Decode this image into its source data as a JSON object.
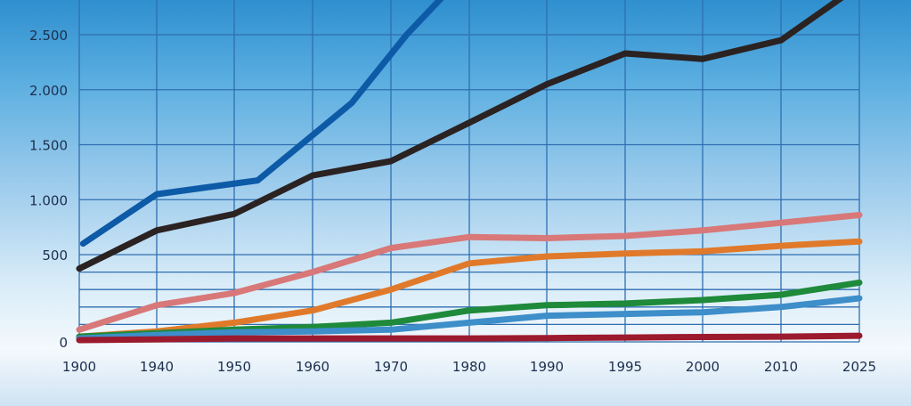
{
  "chart_data": {
    "type": "line",
    "title": "",
    "xlabel": "",
    "ylabel": "",
    "grid": true,
    "legend": "none",
    "x": [
      1900,
      1940,
      1950,
      1960,
      1970,
      1980,
      1990,
      1995,
      2000,
      2010,
      2025
    ],
    "x_tick_labels": [
      "1900",
      "1940",
      "1950",
      "1960",
      "1970",
      "1980",
      "1990",
      "1995",
      "2000",
      "2010",
      "2025"
    ],
    "y_ticks": [
      0,
      500,
      1000,
      1500,
      2000,
      2500
    ],
    "y_tick_labels": [
      "0",
      "500",
      "1.000",
      "1.500",
      "2.000",
      "2.500"
    ],
    "ylim": [
      0,
      2950
    ],
    "series": [
      {
        "color": "#0d5aa7",
        "values": [
          580,
          1060,
          1200,
          1500,
          1880,
          2300,
          null,
          null,
          null,
          null,
          null
        ],
        "extra_points": [
          [
            1902,
            600
          ],
          [
            1940,
            1050
          ],
          [
            1953,
            1175
          ],
          [
            1965,
            1880
          ],
          [
            1972,
            2500
          ],
          [
            1978,
            2950
          ]
        ]
      },
      {
        "color": "#2b2222",
        "values": [
          420,
          720,
          870,
          1220,
          1350,
          1700,
          2050,
          2330,
          2280,
          2450,
          2950
        ]
      },
      {
        "color": "#d87878",
        "values": [
          70,
          210,
          280,
          400,
          560,
          660,
          650,
          670,
          720,
          790,
          860
        ]
      },
      {
        "color": "#e07a2a",
        "values": [
          30,
          60,
          110,
          180,
          300,
          450,
          490,
          510,
          530,
          580,
          620
        ]
      },
      {
        "color": "#1e8a3a",
        "values": [
          30,
          50,
          70,
          85,
          110,
          180,
          210,
          220,
          240,
          270,
          340
        ]
      },
      {
        "color": "#3d8ec9",
        "values": [
          20,
          40,
          55,
          60,
          70,
          110,
          150,
          160,
          170,
          200,
          250
        ]
      },
      {
        "color": "#9c1a2e",
        "values": [
          10,
          15,
          20,
          20,
          20,
          20,
          22,
          25,
          28,
          30,
          35
        ]
      }
    ]
  }
}
